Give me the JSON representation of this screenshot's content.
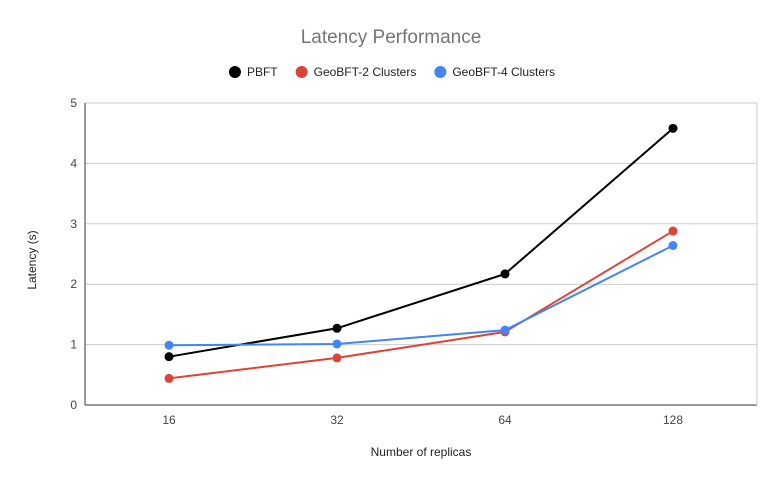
{
  "chart_data": {
    "type": "line",
    "title": "Latency Performance",
    "xlabel": "Number of replicas",
    "ylabel": "Latency (s)",
    "categories": [
      "16",
      "32",
      "64",
      "128"
    ],
    "ylim": [
      0,
      5
    ],
    "yticks": [
      0,
      1,
      2,
      3,
      4,
      5
    ],
    "grid": true,
    "legend_position": "top",
    "series": [
      {
        "name": "PBFT",
        "color": "#000000",
        "values": [
          0.8,
          1.27,
          2.17,
          4.58
        ]
      },
      {
        "name": "GeoBFT-2 Clusters",
        "color": "#db4437",
        "values": [
          0.44,
          0.78,
          1.21,
          2.88
        ]
      },
      {
        "name": "GeoBFT-4 Clusters",
        "color": "#4285f4",
        "values": [
          0.99,
          1.01,
          1.24,
          2.64
        ]
      }
    ]
  }
}
